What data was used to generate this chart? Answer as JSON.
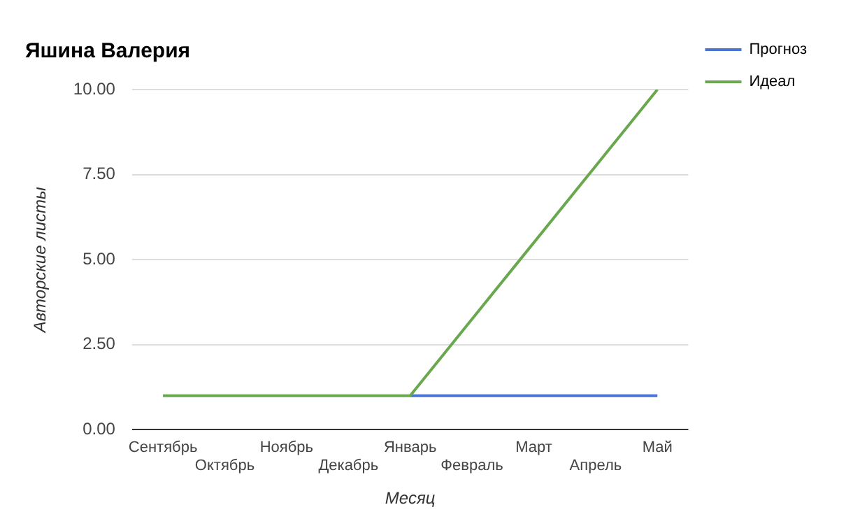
{
  "chart_data": {
    "type": "line",
    "title": "Яшина Валерия",
    "xlabel": "Месяц",
    "ylabel": "Авторские листы",
    "categories": [
      "Сентябрь",
      "Октябрь",
      "Ноябрь",
      "Декабрь",
      "Январь",
      "Февраль",
      "Март",
      "Апрель",
      "Май"
    ],
    "series": [
      {
        "name": "Прогноз",
        "color": "#4a74d2",
        "values": [
          null,
          null,
          null,
          null,
          1,
          1,
          1,
          1,
          1
        ]
      },
      {
        "name": "Идеал",
        "color": "#6aa84f",
        "values": [
          1,
          1,
          1,
          1,
          1,
          3.25,
          5.5,
          7.75,
          10
        ]
      }
    ],
    "ylim": [
      0,
      10
    ],
    "yticks": [
      {
        "value": 0,
        "label": "0.00"
      },
      {
        "value": 2.5,
        "label": "2.50"
      },
      {
        "value": 5,
        "label": "5.00"
      },
      {
        "value": 7.5,
        "label": "7.50"
      },
      {
        "value": 10,
        "label": "10.00"
      }
    ],
    "grid": "y",
    "legend": "top right",
    "marker": "none",
    "line_style": "solid"
  }
}
